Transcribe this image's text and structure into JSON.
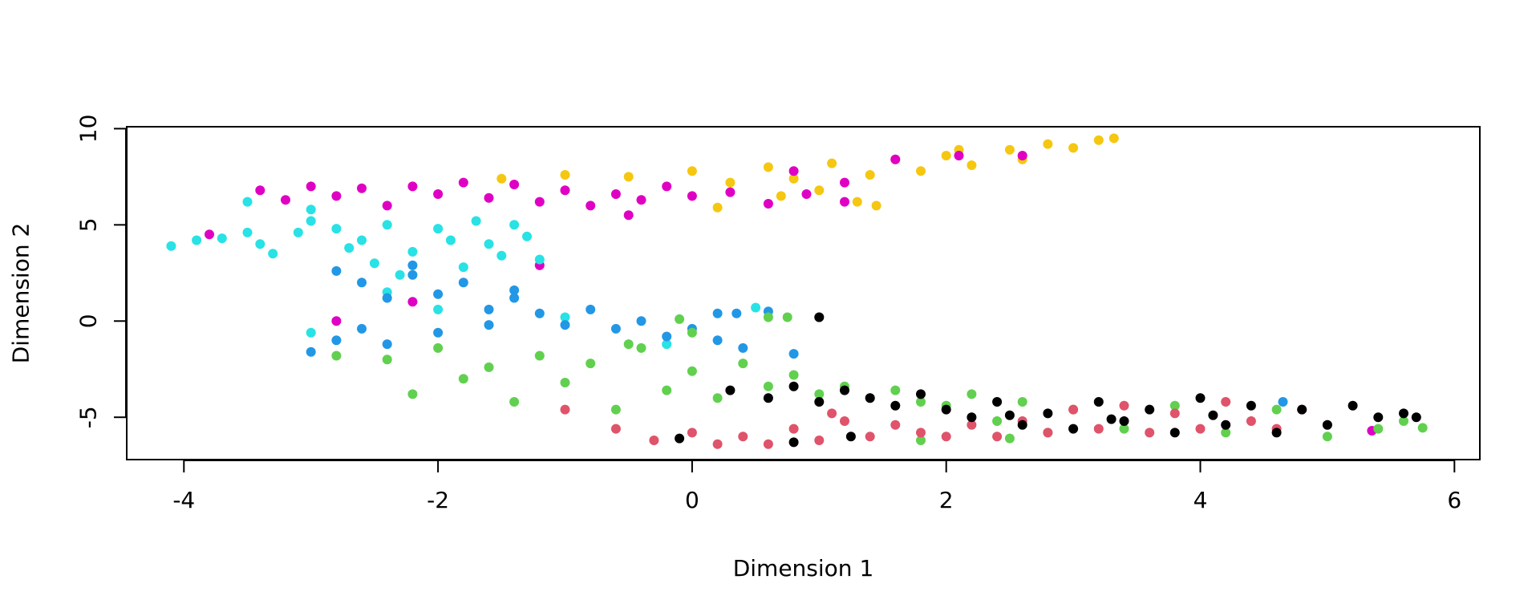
{
  "chart_data": {
    "type": "scatter",
    "title": "",
    "xlabel": "Dimension 1",
    "ylabel": "Dimension 2",
    "xlim": [
      -4.45,
      6.2
    ],
    "ylim": [
      -7.2,
      10.1
    ],
    "x_ticks": [
      -4,
      -2,
      0,
      2,
      4,
      6
    ],
    "y_ticks": [
      -5,
      0,
      5,
      10
    ],
    "grid": false,
    "legend": "none",
    "marker": "filled-circle",
    "series": [
      {
        "color": "#F5C710",
        "points": [
          [
            -1.5,
            7.4
          ],
          [
            -1.0,
            7.6
          ],
          [
            -0.5,
            7.5
          ],
          [
            0.0,
            7.8
          ],
          [
            0.3,
            7.2
          ],
          [
            0.6,
            8.0
          ],
          [
            0.8,
            7.4
          ],
          [
            1.0,
            6.8
          ],
          [
            1.1,
            8.2
          ],
          [
            1.3,
            6.2
          ],
          [
            1.4,
            7.6
          ],
          [
            1.6,
            8.4
          ],
          [
            1.8,
            7.8
          ],
          [
            2.0,
            8.6
          ],
          [
            2.2,
            8.1
          ],
          [
            2.5,
            8.9
          ],
          [
            2.8,
            9.2
          ],
          [
            3.0,
            9.0
          ],
          [
            3.2,
            9.4
          ],
          [
            3.32,
            9.5
          ],
          [
            0.2,
            5.9
          ],
          [
            0.7,
            6.5
          ],
          [
            1.45,
            6.0
          ],
          [
            2.1,
            8.9
          ],
          [
            2.6,
            8.4
          ]
        ]
      },
      {
        "color": "#DF00C4",
        "points": [
          [
            -3.4,
            6.8
          ],
          [
            -3.2,
            6.3
          ],
          [
            -3.0,
            7.0
          ],
          [
            -2.8,
            6.5
          ],
          [
            -2.6,
            6.9
          ],
          [
            -2.4,
            6.0
          ],
          [
            -2.2,
            7.0
          ],
          [
            -2.0,
            6.6
          ],
          [
            -1.8,
            7.2
          ],
          [
            -1.6,
            6.4
          ],
          [
            -1.4,
            7.1
          ],
          [
            -1.2,
            6.2
          ],
          [
            -1.0,
            6.8
          ],
          [
            -0.8,
            6.0
          ],
          [
            -0.6,
            6.6
          ],
          [
            -0.4,
            6.3
          ],
          [
            -0.2,
            7.0
          ],
          [
            0.0,
            6.5
          ],
          [
            0.3,
            6.7
          ],
          [
            0.6,
            6.1
          ],
          [
            0.9,
            6.6
          ],
          [
            1.2,
            6.2
          ],
          [
            0.8,
            7.8
          ],
          [
            1.2,
            7.2
          ],
          [
            1.6,
            8.4
          ],
          [
            2.1,
            8.6
          ],
          [
            2.6,
            8.6
          ],
          [
            -3.8,
            4.5
          ],
          [
            -2.8,
            0.0
          ],
          [
            -2.2,
            1.0
          ],
          [
            -1.2,
            2.9
          ],
          [
            -0.5,
            5.5
          ],
          [
            5.35,
            -5.7
          ]
        ]
      },
      {
        "color": "#28E2E5",
        "points": [
          [
            -4.1,
            3.9
          ],
          [
            -3.9,
            4.2
          ],
          [
            -3.7,
            4.3
          ],
          [
            -3.5,
            4.6
          ],
          [
            -3.4,
            4.0
          ],
          [
            -3.3,
            3.5
          ],
          [
            -3.1,
            4.6
          ],
          [
            -3.0,
            5.2
          ],
          [
            -2.8,
            4.8
          ],
          [
            -2.7,
            3.8
          ],
          [
            -2.6,
            4.2
          ],
          [
            -2.5,
            3.0
          ],
          [
            -2.4,
            5.0
          ],
          [
            -2.3,
            2.4
          ],
          [
            -2.2,
            3.6
          ],
          [
            -2.0,
            4.8
          ],
          [
            -1.9,
            4.2
          ],
          [
            -1.8,
            2.8
          ],
          [
            -1.7,
            5.2
          ],
          [
            -1.6,
            4.0
          ],
          [
            -1.5,
            3.4
          ],
          [
            -1.4,
            5.0
          ],
          [
            -1.3,
            4.4
          ],
          [
            -1.2,
            3.2
          ],
          [
            -3.5,
            6.2
          ],
          [
            -3.0,
            5.8
          ],
          [
            -2.4,
            1.5
          ],
          [
            -2.0,
            0.6
          ],
          [
            -3.0,
            -0.6
          ],
          [
            -1.0,
            0.2
          ],
          [
            0.5,
            0.7
          ],
          [
            -0.2,
            -1.2
          ]
        ]
      },
      {
        "color": "#2297E6",
        "points": [
          [
            -2.8,
            2.6
          ],
          [
            -2.6,
            2.0
          ],
          [
            -2.4,
            1.2
          ],
          [
            -2.2,
            2.4
          ],
          [
            -2.0,
            1.4
          ],
          [
            -1.8,
            2.0
          ],
          [
            -1.6,
            0.6
          ],
          [
            -1.4,
            1.2
          ],
          [
            -1.2,
            0.4
          ],
          [
            -1.0,
            -0.2
          ],
          [
            -0.8,
            0.6
          ],
          [
            -0.6,
            -0.4
          ],
          [
            -0.4,
            0.0
          ],
          [
            -0.2,
            -0.8
          ],
          [
            0.0,
            -0.4
          ],
          [
            0.2,
            -1.0
          ],
          [
            0.4,
            -1.4
          ],
          [
            -2.6,
            -0.4
          ],
          [
            -2.4,
            -1.2
          ],
          [
            -2.0,
            -0.6
          ],
          [
            -1.6,
            -0.2
          ],
          [
            -3.0,
            -1.6
          ],
          [
            -2.8,
            -1.0
          ],
          [
            0.2,
            0.4
          ],
          [
            0.35,
            0.4
          ],
          [
            0.6,
            0.5
          ],
          [
            0.8,
            -1.7
          ],
          [
            -2.2,
            2.9
          ],
          [
            -1.4,
            1.6
          ],
          [
            4.65,
            -4.2
          ]
        ]
      },
      {
        "color": "#61D04F",
        "points": [
          [
            -2.8,
            -1.8
          ],
          [
            -2.4,
            -2.0
          ],
          [
            -2.2,
            -3.8
          ],
          [
            -2.0,
            -1.4
          ],
          [
            -1.8,
            -3.0
          ],
          [
            -1.6,
            -2.4
          ],
          [
            -1.4,
            -4.2
          ],
          [
            -1.2,
            -1.8
          ],
          [
            -1.0,
            -3.2
          ],
          [
            -0.8,
            -2.2
          ],
          [
            -0.6,
            -4.6
          ],
          [
            -0.4,
            -1.4
          ],
          [
            -0.2,
            -3.6
          ],
          [
            0.0,
            -2.6
          ],
          [
            0.2,
            -4.0
          ],
          [
            0.4,
            -2.2
          ],
          [
            0.6,
            -3.4
          ],
          [
            0.8,
            -2.8
          ],
          [
            1.0,
            -3.8
          ],
          [
            1.2,
            -3.4
          ],
          [
            1.4,
            -4.0
          ],
          [
            1.6,
            -3.6
          ],
          [
            1.8,
            -4.2
          ],
          [
            2.0,
            -4.4
          ],
          [
            2.2,
            -3.8
          ],
          [
            2.4,
            -5.2
          ],
          [
            2.6,
            -4.2
          ],
          [
            2.8,
            -5.8
          ],
          [
            3.0,
            -4.6
          ],
          [
            3.4,
            -5.6
          ],
          [
            3.8,
            -4.4
          ],
          [
            4.2,
            -5.8
          ],
          [
            4.6,
            -4.6
          ],
          [
            5.0,
            -6.0
          ],
          [
            5.4,
            -5.6
          ],
          [
            5.6,
            -5.2
          ],
          [
            5.75,
            -5.55
          ],
          [
            0.6,
            0.2
          ],
          [
            0.75,
            0.2
          ],
          [
            1.0,
            0.2
          ],
          [
            -0.1,
            0.1
          ],
          [
            0.0,
            -0.6
          ],
          [
            -0.5,
            -1.2
          ],
          [
            1.8,
            -6.2
          ],
          [
            2.5,
            -6.1
          ]
        ]
      },
      {
        "color": "#DF536B",
        "points": [
          [
            -1.0,
            -4.6
          ],
          [
            -0.6,
            -5.6
          ],
          [
            -0.3,
            -6.2
          ],
          [
            0.0,
            -5.8
          ],
          [
            0.2,
            -6.4
          ],
          [
            0.4,
            -6.0
          ],
          [
            0.6,
            -6.4
          ],
          [
            0.8,
            -5.6
          ],
          [
            1.0,
            -6.2
          ],
          [
            1.2,
            -5.2
          ],
          [
            1.4,
            -6.0
          ],
          [
            1.6,
            -5.4
          ],
          [
            1.8,
            -5.8
          ],
          [
            2.0,
            -6.0
          ],
          [
            2.2,
            -5.4
          ],
          [
            2.4,
            -6.0
          ],
          [
            2.6,
            -5.2
          ],
          [
            2.8,
            -5.8
          ],
          [
            3.0,
            -4.6
          ],
          [
            3.2,
            -5.6
          ],
          [
            3.4,
            -4.4
          ],
          [
            3.6,
            -5.8
          ],
          [
            3.8,
            -4.8
          ],
          [
            4.0,
            -5.6
          ],
          [
            4.2,
            -4.2
          ],
          [
            4.4,
            -5.2
          ],
          [
            4.6,
            -5.6
          ],
          [
            4.8,
            -4.6
          ],
          [
            5.0,
            -5.4
          ],
          [
            1.1,
            -4.8
          ]
        ]
      },
      {
        "color": "#000000",
        "points": [
          [
            0.3,
            -3.6
          ],
          [
            0.6,
            -4.0
          ],
          [
            0.8,
            -3.4
          ],
          [
            1.0,
            -4.2
          ],
          [
            1.2,
            -3.6
          ],
          [
            1.4,
            -4.0
          ],
          [
            1.6,
            -4.4
          ],
          [
            1.8,
            -3.8
          ],
          [
            2.0,
            -4.6
          ],
          [
            2.2,
            -5.0
          ],
          [
            2.4,
            -4.2
          ],
          [
            2.6,
            -5.4
          ],
          [
            2.8,
            -4.8
          ],
          [
            3.0,
            -5.6
          ],
          [
            3.2,
            -4.2
          ],
          [
            3.4,
            -5.2
          ],
          [
            3.6,
            -4.6
          ],
          [
            3.8,
            -5.8
          ],
          [
            4.0,
            -4.0
          ],
          [
            4.2,
            -5.4
          ],
          [
            4.4,
            -4.4
          ],
          [
            4.6,
            -5.8
          ],
          [
            4.8,
            -4.6
          ],
          [
            5.0,
            -5.4
          ],
          [
            5.2,
            -4.4
          ],
          [
            5.4,
            -5.0
          ],
          [
            5.6,
            -4.8
          ],
          [
            5.7,
            -5.0
          ],
          [
            -0.1,
            -6.1
          ],
          [
            0.8,
            -6.3
          ],
          [
            1.25,
            -6.0
          ],
          [
            2.5,
            -4.9
          ],
          [
            3.3,
            -5.1
          ],
          [
            4.1,
            -4.9
          ],
          [
            1.0,
            0.2
          ]
        ]
      }
    ]
  }
}
